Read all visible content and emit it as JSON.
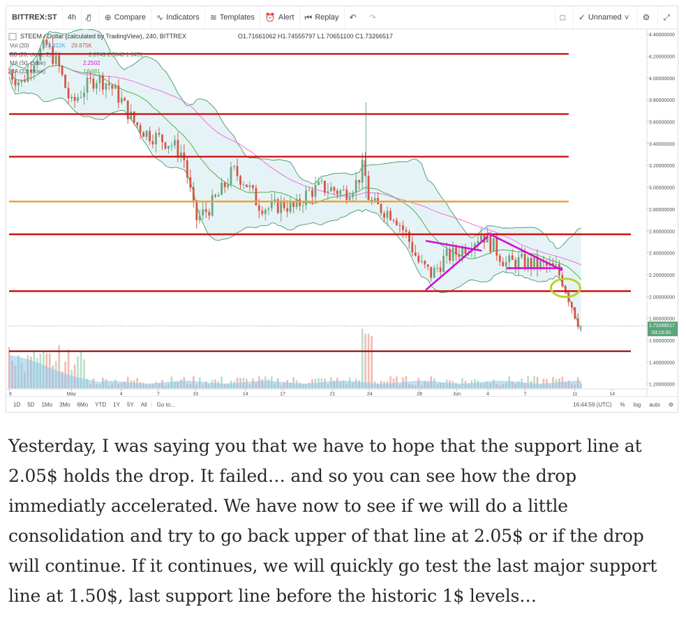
{
  "toolbar": {
    "symbol": "BITTREX:ST",
    "interval": "4h",
    "bar_style_icon": "candles-icon",
    "compare": "Compare",
    "indicators": "Indicators",
    "templates": "Templates",
    "alert": "Alert",
    "replay": "Replay",
    "layout_name": "Unnamed"
  },
  "legend": {
    "title": "STEEM / Dollar (calculated by TradingView), 240, BITTREX",
    "ohlc": "O1.71661062 H1.74555797 L1.70651100 C1.73266517",
    "vol": "Vol (20)",
    "vol_value": "23.422K",
    "vol_value2": "29.875K",
    "bb": "BB (20, close, 2)",
    "bb_values": "2.0749  2.5048  1.6451",
    "ma1": "MA (50, close)",
    "ma1_value": "2.2502",
    "ma2": "MA (23, close)",
    "ma2_value": "1.9481"
  },
  "bottom": {
    "ranges": [
      "1D",
      "5D",
      "1Mo",
      "3Mo",
      "6Mo",
      "YTD",
      "1Y",
      "5Y",
      "All"
    ],
    "goto": "Go to...",
    "time": "16:44:59 (UTC)",
    "percent": "%",
    "log": "log",
    "auto": "auto"
  },
  "colors": {
    "up": "#6ba583",
    "down": "#d75442",
    "resistance": "#cc1111",
    "orange_line": "#f0a030",
    "magenta": "#d010d0",
    "bb_fill": "#e3f2f5",
    "bb_line": "#2e8b57",
    "ma_slow": "#ee6fe0",
    "ma_fast": "#4caf50",
    "volume": "#90c4e8",
    "circle": "#b8d22c"
  },
  "chart_data": {
    "type": "candlestick",
    "pair": "STEEM / Dollar",
    "exchange": "BITTREX",
    "last_price": "1.73266517",
    "countdown": "03:15:00",
    "y_ticks": [
      "4.40000000",
      "4.20000000",
      "4.00000000",
      "3.80000000",
      "3.60000000",
      "3.40000000",
      "3.20000000",
      "3.00000000",
      "2.80000000",
      "2.60000000",
      "2.40000000",
      "2.20000000",
      "2.00000000",
      "1.80000000",
      "1.60000000",
      "1.40000000",
      "1.20000000"
    ],
    "y_tick_values": [
      4.4,
      4.2,
      4.0,
      3.8,
      3.6,
      3.4,
      3.2,
      3.0,
      2.8,
      2.6,
      2.4,
      2.2,
      2.0,
      1.8,
      1.6,
      1.4,
      1.2
    ],
    "ylim": [
      1.16,
      4.42
    ],
    "x_ticks": [
      {
        "label": "6",
        "day": 0
      },
      {
        "label": "May",
        "day": 10
      },
      {
        "label": "4",
        "day": 18
      },
      {
        "label": "7",
        "day": 24
      },
      {
        "label": "10",
        "day": 30
      },
      {
        "label": "14",
        "day": 38
      },
      {
        "label": "17",
        "day": 44
      },
      {
        "label": "21",
        "day": 52
      },
      {
        "label": "24",
        "day": 58
      },
      {
        "label": "28",
        "day": 66
      },
      {
        "label": "Jun",
        "day": 72
      },
      {
        "label": "4",
        "day": 77
      },
      {
        "label": "7",
        "day": 83
      },
      {
        "label": "11",
        "day": 91
      },
      {
        "label": "14",
        "day": 97
      }
    ],
    "xlim": [
      0,
      100
    ],
    "horizontal_levels": [
      {
        "price": 4.22,
        "color": "red",
        "x_end": 90
      },
      {
        "price": 3.67,
        "color": "red",
        "x_end": 90
      },
      {
        "price": 3.28,
        "color": "red",
        "x_end": 90
      },
      {
        "price": 2.87,
        "color": "orange",
        "x_end": 90
      },
      {
        "price": 2.57,
        "color": "red",
        "x_end": 100
      },
      {
        "price": 2.05,
        "color": "red",
        "x_end": 100
      },
      {
        "price": 1.5,
        "color": "darkred",
        "x_end": 100
      }
    ],
    "price_path": [
      {
        "x": 0,
        "y": 4.05
      },
      {
        "x": 2,
        "y": 3.95
      },
      {
        "x": 4,
        "y": 4.18
      },
      {
        "x": 6,
        "y": 4.3
      },
      {
        "x": 8,
        "y": 4.1
      },
      {
        "x": 10,
        "y": 3.75
      },
      {
        "x": 12,
        "y": 3.9
      },
      {
        "x": 14,
        "y": 4.0
      },
      {
        "x": 16,
        "y": 3.95
      },
      {
        "x": 18,
        "y": 3.8
      },
      {
        "x": 20,
        "y": 3.6
      },
      {
        "x": 22,
        "y": 3.5
      },
      {
        "x": 24,
        "y": 3.45
      },
      {
        "x": 26,
        "y": 3.4
      },
      {
        "x": 28,
        "y": 3.3
      },
      {
        "x": 30,
        "y": 2.7
      },
      {
        "x": 32,
        "y": 2.8
      },
      {
        "x": 34,
        "y": 2.95
      },
      {
        "x": 36,
        "y": 3.15
      },
      {
        "x": 38,
        "y": 3.05
      },
      {
        "x": 40,
        "y": 2.85
      },
      {
        "x": 42,
        "y": 2.8
      },
      {
        "x": 44,
        "y": 2.85
      },
      {
        "x": 46,
        "y": 2.8
      },
      {
        "x": 48,
        "y": 2.95
      },
      {
        "x": 50,
        "y": 3.0
      },
      {
        "x": 52,
        "y": 2.98
      },
      {
        "x": 54,
        "y": 2.95
      },
      {
        "x": 56,
        "y": 3.05
      },
      {
        "x": 57,
        "y": 3.2
      },
      {
        "x": 58,
        "y": 2.85
      },
      {
        "x": 60,
        "y": 2.8
      },
      {
        "x": 62,
        "y": 2.75
      },
      {
        "x": 64,
        "y": 2.55
      },
      {
        "x": 66,
        "y": 2.3
      },
      {
        "x": 68,
        "y": 2.2
      },
      {
        "x": 70,
        "y": 2.35
      },
      {
        "x": 72,
        "y": 2.4
      },
      {
        "x": 74,
        "y": 2.48
      },
      {
        "x": 76,
        "y": 2.58
      },
      {
        "x": 78,
        "y": 2.45
      },
      {
        "x": 80,
        "y": 2.3
      },
      {
        "x": 82,
        "y": 2.32
      },
      {
        "x": 84,
        "y": 2.3
      },
      {
        "x": 86,
        "y": 2.28
      },
      {
        "x": 88,
        "y": 2.25
      },
      {
        "x": 89,
        "y": 2.15
      },
      {
        "x": 90,
        "y": 2.0
      },
      {
        "x": 91,
        "y": 1.85
      },
      {
        "x": 92,
        "y": 1.73
      }
    ],
    "annotations": {
      "triangle_lines": [
        {
          "x1": 67,
          "y1": 2.06,
          "x2": 77,
          "y2": 2.55
        },
        {
          "x1": 67,
          "y1": 2.51,
          "x2": 76,
          "y2": 2.42
        },
        {
          "x1": 77,
          "y1": 2.58,
          "x2": 89,
          "y2": 2.24
        },
        {
          "x1": 80,
          "y1": 2.26,
          "x2": 89,
          "y2": 2.26
        }
      ],
      "circle": {
        "x": 89.5,
        "y": 2.08
      }
    }
  },
  "caption": "Yesterday, I was saying you that we have to hope that the support line at 2.05$ holds the drop. It failed… and so you can see how the drop immediatly accelerated. We have now to see if we will do a little consolidation and try to go back upper of that line at 2.05$ or if the drop will continue. If it continues, we will quickly go test the last major support line at 1.50$, last support line before the historic 1$ levels…"
}
